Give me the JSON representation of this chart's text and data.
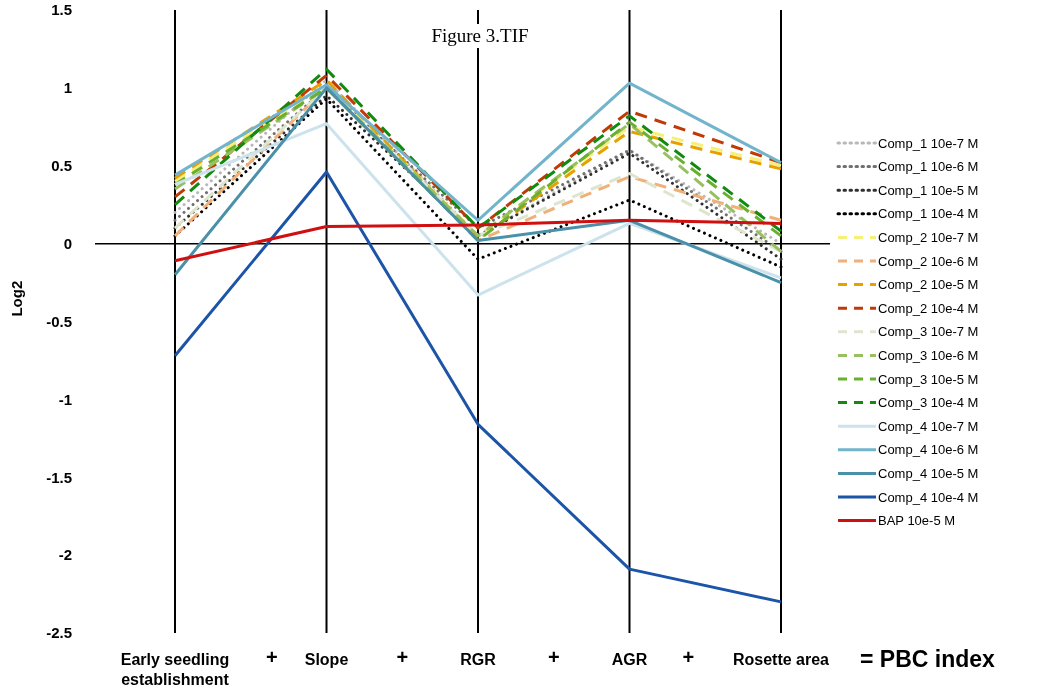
{
  "chart_data": {
    "type": "line",
    "title": "Figure 3.TIF",
    "ylabel": "Log2",
    "categories": [
      "Early seedling establishment",
      "Slope",
      "RGR",
      "AGR",
      "Rosette area"
    ],
    "ylim": [
      -2.5,
      1.5
    ],
    "yticks": [
      1.5,
      1,
      0.5,
      0,
      -0.5,
      -1,
      -1.5,
      -2,
      -2.5
    ],
    "grid": "x",
    "legend": "right",
    "marker": "none",
    "ref_lines": [
      {
        "axis": "y",
        "value": 0,
        "color": "#000000"
      }
    ],
    "annotations": [
      "+",
      "+",
      "+",
      "+",
      "= PBC index"
    ],
    "series": [
      {
        "name": "Comp_1 10e-7 M",
        "color": "#b8b8b8",
        "line_style": "dotted",
        "values": [
          0.2,
          1.05,
          0.05,
          0.6,
          0.0
        ]
      },
      {
        "name": "Comp_1 10e-6 M",
        "color": "#707070",
        "line_style": "dotted",
        "values": [
          0.15,
          1.0,
          0.1,
          0.6,
          -0.05
        ]
      },
      {
        "name": "Comp_1 10e-5 M",
        "color": "#303030",
        "line_style": "dotted",
        "values": [
          0.1,
          0.95,
          0.05,
          0.58,
          -0.1
        ]
      },
      {
        "name": "Comp_1 10e-4 M",
        "color": "#000000",
        "line_style": "dotted",
        "values": [
          0.05,
          0.93,
          -0.1,
          0.28,
          -0.15
        ]
      },
      {
        "name": "Comp_2 10e-7 M",
        "color": "#f5f07a",
        "line_style": "dashed",
        "values": [
          0.4,
          1.02,
          0.05,
          0.75,
          0.5
        ]
      },
      {
        "name": "Comp_2 10e-6 M",
        "color": "#f0b07a",
        "line_style": "dashed",
        "values": [
          0.05,
          1.0,
          0.02,
          0.43,
          0.15
        ]
      },
      {
        "name": "Comp_2 10e-5 M",
        "color": "#e8a000",
        "line_style": "dashed",
        "values": [
          0.42,
          1.05,
          0.03,
          0.72,
          0.48
        ]
      },
      {
        "name": "Comp_2 10e-4 M",
        "color": "#c03a08",
        "line_style": "dashed",
        "values": [
          0.3,
          1.08,
          0.1,
          0.85,
          0.52
        ]
      },
      {
        "name": "Comp_3 10e-7 M",
        "color": "#dde5cc",
        "line_style": "dashed",
        "values": [
          0.1,
          1.0,
          0.05,
          0.45,
          -0.05
        ]
      },
      {
        "name": "Comp_3 10e-6 M",
        "color": "#98c060",
        "line_style": "dashed",
        "values": [
          0.35,
          1.0,
          0.05,
          0.77,
          -0.05
        ]
      },
      {
        "name": "Comp_3 10e-5 M",
        "color": "#6ab030",
        "line_style": "dashed",
        "values": [
          0.38,
          1.0,
          0.02,
          0.78,
          0.05
        ]
      },
      {
        "name": "Comp_3 10e-4 M",
        "color": "#128a10",
        "line_style": "dashed",
        "values": [
          0.25,
          1.12,
          0.1,
          0.82,
          0.08
        ]
      },
      {
        "name": "Comp_4 10e-7 M",
        "color": "#cce2ec",
        "line_style": "solid",
        "values": [
          0.38,
          0.77,
          -0.33,
          0.13,
          -0.22
        ]
      },
      {
        "name": "Comp_4 10e-6 M",
        "color": "#72b4cc",
        "line_style": "solid",
        "values": [
          0.44,
          1.02,
          0.15,
          1.03,
          0.52
        ]
      },
      {
        "name": "Comp_4 10e-5 M",
        "color": "#4a90a8",
        "line_style": "solid",
        "values": [
          -0.2,
          1.0,
          0.02,
          0.15,
          -0.25
        ]
      },
      {
        "name": "Comp_4 10e-4 M",
        "color": "#1c54a8",
        "line_style": "solid",
        "values": [
          -0.72,
          0.46,
          -1.16,
          -2.09,
          -2.3
        ]
      },
      {
        "name": "BAP 10e-5 M",
        "color": "#d01010",
        "line_style": "solid",
        "values": [
          -0.11,
          0.11,
          0.12,
          0.15,
          0.13
        ]
      }
    ]
  }
}
